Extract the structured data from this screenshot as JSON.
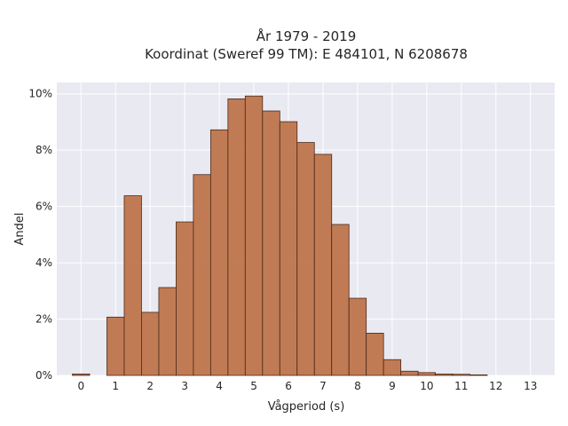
{
  "chart_data": {
    "type": "bar",
    "title": [
      "År 1979 - 2019",
      "Koordinat (Sweref 99 TM): E 484101, N 6208678"
    ],
    "xlabel": "Vågperiod (s)",
    "ylabel": "Andel",
    "xlim": [
      -0.7,
      13.7
    ],
    "ylim": [
      0,
      10.4
    ],
    "x_ticks": [
      "0",
      "1",
      "2",
      "3",
      "4",
      "5",
      "6",
      "7",
      "8",
      "9",
      "10",
      "11",
      "12",
      "13"
    ],
    "y_ticks": [
      "0%",
      "2%",
      "4%",
      "6%",
      "8%",
      "10%"
    ],
    "grid": true,
    "bin_width": 0.5,
    "bins": [
      {
        "x": 0.0,
        "value": 0.05
      },
      {
        "x": 1.0,
        "value": 2.07
      },
      {
        "x": 1.5,
        "value": 6.38
      },
      {
        "x": 2.0,
        "value": 2.24
      },
      {
        "x": 2.5,
        "value": 3.12
      },
      {
        "x": 3.0,
        "value": 5.45
      },
      {
        "x": 3.5,
        "value": 7.13
      },
      {
        "x": 4.0,
        "value": 8.72
      },
      {
        "x": 4.5,
        "value": 9.82
      },
      {
        "x": 5.0,
        "value": 9.92
      },
      {
        "x": 5.5,
        "value": 9.39
      },
      {
        "x": 6.0,
        "value": 9.01
      },
      {
        "x": 6.5,
        "value": 8.27
      },
      {
        "x": 7.0,
        "value": 7.85
      },
      {
        "x": 7.5,
        "value": 5.36
      },
      {
        "x": 8.0,
        "value": 2.74
      },
      {
        "x": 8.5,
        "value": 1.5
      },
      {
        "x": 9.0,
        "value": 0.56
      },
      {
        "x": 9.5,
        "value": 0.15
      },
      {
        "x": 10.0,
        "value": 0.1
      },
      {
        "x": 10.5,
        "value": 0.05
      },
      {
        "x": 11.0,
        "value": 0.04
      },
      {
        "x": 11.5,
        "value": 0.02
      }
    ],
    "bar_color": "#bc7148",
    "bar_edge_color": "#4a2a18",
    "plot_background": "#e9e9f1"
  }
}
